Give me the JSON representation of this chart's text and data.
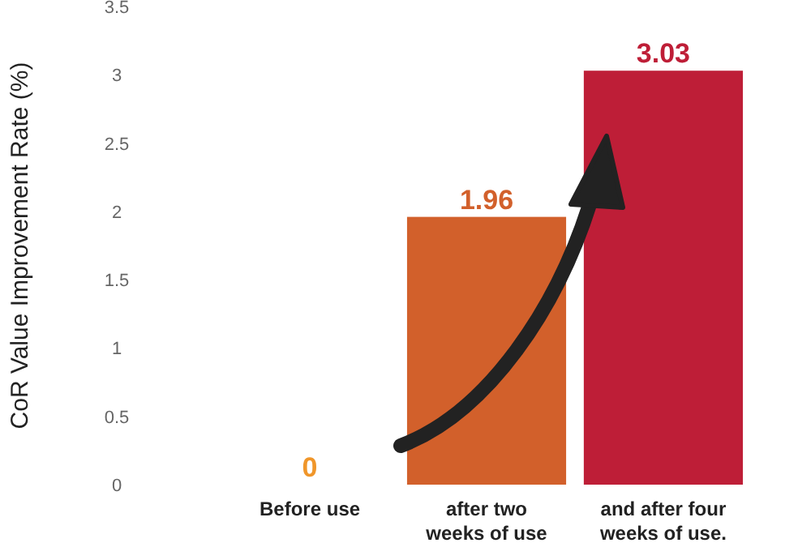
{
  "chart_data": {
    "type": "bar",
    "ylabel": "CoR Value Improvement Rate (%)",
    "categories": [
      "Before use",
      "after two weeks of use",
      "and after four weeks of use."
    ],
    "values": [
      0,
      1.96,
      3.03
    ],
    "colors": [
      "#f0962a",
      "#d2602b",
      "#be1e37"
    ],
    "ylim": [
      0,
      3.5
    ],
    "yticks": [
      0,
      0.5,
      1,
      1.5,
      2,
      2.5,
      3,
      3.5
    ],
    "data_labels": true
  }
}
